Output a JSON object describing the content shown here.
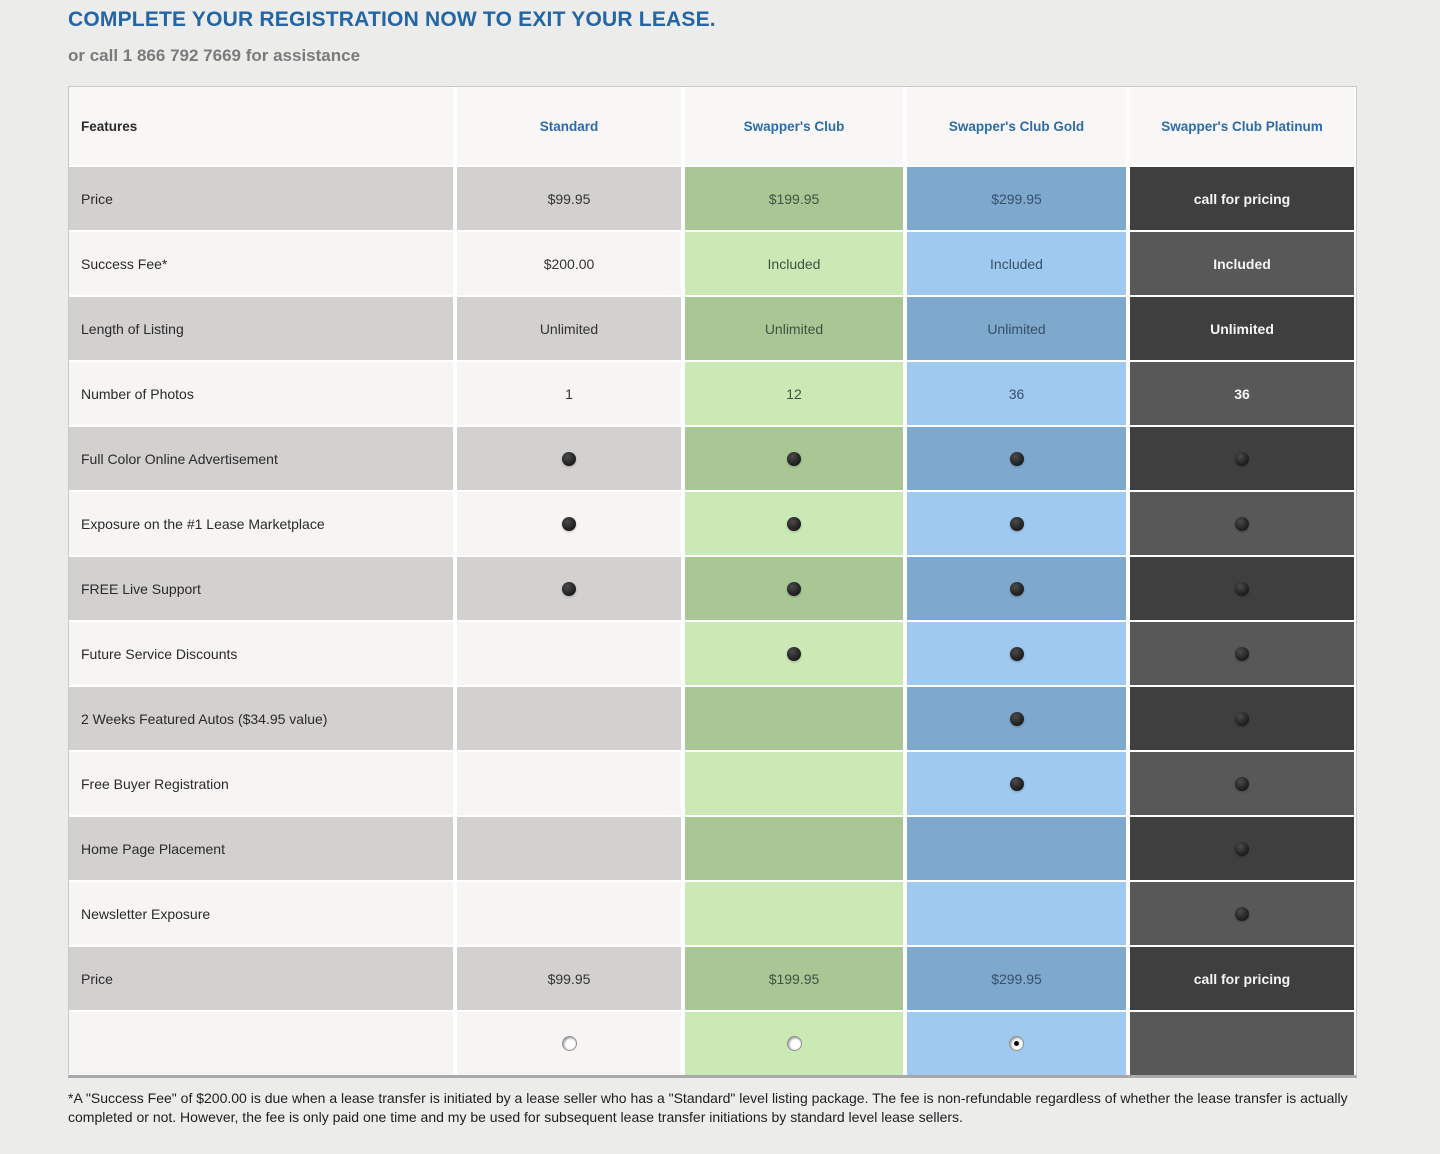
{
  "page": {
    "title": "COMPLETE YOUR REGISTRATION NOW TO EXIT YOUR LEASE.",
    "subtitle": "or call 1 866 792 7669 for assistance",
    "footnote": "*A \"Success Fee\" of $200.00 is due when a lease transfer is initiated by a lease seller who has a \"Standard\" level listing package. The fee is non-refundable regardless of whether the lease transfer is actually completed or not. However, the fee is only paid one time and my be used for subsequent lease transfer initiations by standard level lease sellers."
  },
  "colors": {
    "page_bg": "#ececea",
    "title_blue": "#2465a5",
    "subtitle_gray": "#7b7b7b",
    "header_bg": "#f8f7f5",
    "header_text_blue": "#2e6ba8",
    "neutral_dark": "#d2d1cf",
    "neutral_light": "#f6f5f3",
    "neutral_text": "#333333",
    "feature_text": "#2a2a2a",
    "club_dark": "#a9c795",
    "club_light": "#cbe9b4",
    "club_text": "#3f5243",
    "gold_dark": "#7ea9cd",
    "gold_light": "#a0c9ef",
    "gold_text": "#35506b",
    "platinum_dark": "#3f3f3f",
    "platinum_light": "#585858",
    "platinum_text": "#f5f5f5",
    "footnote_text": "#1e1e1e",
    "dot_color": "#1d1d1d"
  },
  "table": {
    "columns": [
      {
        "key": "features",
        "label": "Features"
      },
      {
        "key": "standard",
        "label": "Standard"
      },
      {
        "key": "club",
        "label": "Swapper's Club"
      },
      {
        "key": "gold",
        "label": "Swapper's Club Gold"
      },
      {
        "key": "platinum",
        "label": "Swapper's Club Platinum"
      }
    ],
    "rows": [
      {
        "feature": "Price",
        "cells": [
          {
            "type": "text",
            "value": "$99.95"
          },
          {
            "type": "text",
            "value": "$199.95"
          },
          {
            "type": "text",
            "value": "$299.95"
          },
          {
            "type": "text",
            "value": "call for pricing"
          }
        ]
      },
      {
        "feature": "Success Fee*",
        "cells": [
          {
            "type": "text",
            "value": "$200.00"
          },
          {
            "type": "text",
            "value": "Included"
          },
          {
            "type": "text",
            "value": "Included"
          },
          {
            "type": "text",
            "value": "Included"
          }
        ]
      },
      {
        "feature": "Length of Listing",
        "cells": [
          {
            "type": "text",
            "value": "Unlimited"
          },
          {
            "type": "text",
            "value": "Unlimited"
          },
          {
            "type": "text",
            "value": "Unlimited"
          },
          {
            "type": "text",
            "value": "Unlimited"
          }
        ]
      },
      {
        "feature": "Number of Photos",
        "cells": [
          {
            "type": "text",
            "value": "1"
          },
          {
            "type": "text",
            "value": "12"
          },
          {
            "type": "text",
            "value": "36"
          },
          {
            "type": "text",
            "value": "36"
          }
        ]
      },
      {
        "feature": "Full Color Online Advertisement",
        "cells": [
          {
            "type": "dot"
          },
          {
            "type": "dot"
          },
          {
            "type": "dot"
          },
          {
            "type": "dot"
          }
        ]
      },
      {
        "feature": "Exposure on the #1 Lease Marketplace",
        "cells": [
          {
            "type": "dot"
          },
          {
            "type": "dot"
          },
          {
            "type": "dot"
          },
          {
            "type": "dot"
          }
        ]
      },
      {
        "feature": "FREE Live Support",
        "cells": [
          {
            "type": "dot"
          },
          {
            "type": "dot"
          },
          {
            "type": "dot"
          },
          {
            "type": "dot"
          }
        ]
      },
      {
        "feature": "Future Service Discounts",
        "cells": [
          {
            "type": "empty"
          },
          {
            "type": "dot"
          },
          {
            "type": "dot"
          },
          {
            "type": "dot"
          }
        ]
      },
      {
        "feature": "2 Weeks Featured Autos ($34.95 value)",
        "cells": [
          {
            "type": "empty"
          },
          {
            "type": "empty"
          },
          {
            "type": "dot"
          },
          {
            "type": "dot"
          }
        ]
      },
      {
        "feature": "Free Buyer Registration",
        "cells": [
          {
            "type": "empty"
          },
          {
            "type": "empty"
          },
          {
            "type": "dot"
          },
          {
            "type": "dot"
          }
        ]
      },
      {
        "feature": "Home Page Placement",
        "cells": [
          {
            "type": "empty"
          },
          {
            "type": "empty"
          },
          {
            "type": "empty"
          },
          {
            "type": "dot"
          }
        ]
      },
      {
        "feature": "Newsletter Exposure",
        "cells": [
          {
            "type": "empty"
          },
          {
            "type": "empty"
          },
          {
            "type": "empty"
          },
          {
            "type": "dot"
          }
        ]
      },
      {
        "feature": "Price",
        "cells": [
          {
            "type": "text",
            "value": "$99.95"
          },
          {
            "type": "text",
            "value": "$199.95"
          },
          {
            "type": "text",
            "value": "$299.95"
          },
          {
            "type": "text",
            "value": "call for pricing"
          }
        ]
      },
      {
        "feature": "",
        "cells": [
          {
            "type": "radio",
            "checked": false
          },
          {
            "type": "radio",
            "checked": false
          },
          {
            "type": "radio",
            "checked": true
          },
          {
            "type": "empty"
          }
        ]
      }
    ]
  }
}
